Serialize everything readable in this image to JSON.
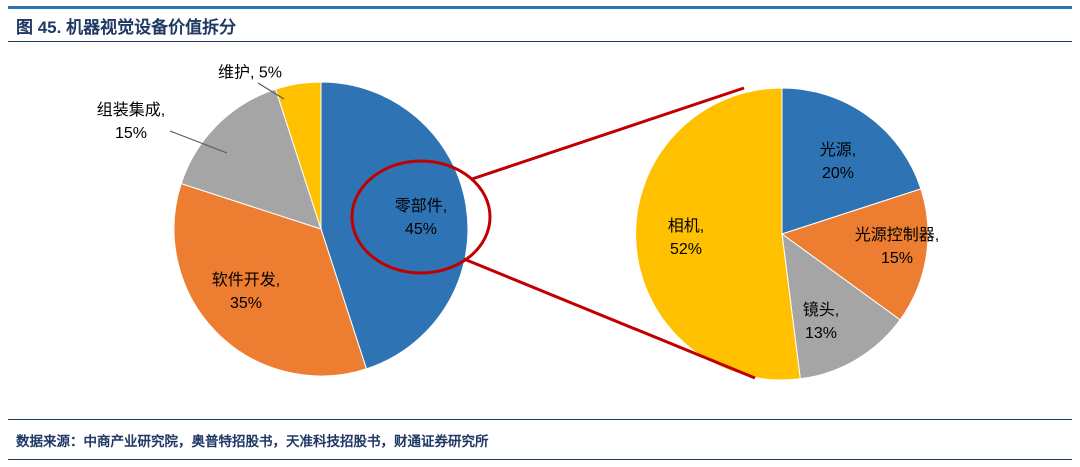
{
  "header": {
    "title": "图 45. 机器视觉设备价值拆分"
  },
  "footer": {
    "source": "数据来源：中商产业研究院，奥普特招股书，天准科技招股书，财通证券研究所"
  },
  "colors": {
    "blue": "#2E74B5",
    "orange": "#ED7D31",
    "gray": "#A5A5A5",
    "yellow": "#FFC000",
    "navy": "#1F3864",
    "red": "#C00000",
    "label_text": "#000000"
  },
  "chart_data": [
    {
      "type": "pie",
      "position": "left",
      "start_angle_deg": 0,
      "direction": "clockwise",
      "legend": "none",
      "slices": [
        {
          "key": "components",
          "category": "零部件",
          "value_pct": 45,
          "color_key": "blue",
          "label": "零部件,\n45%",
          "label_placement": "inside"
        },
        {
          "key": "software-development",
          "category": "软件开发",
          "value_pct": 35,
          "color_key": "orange",
          "label": "软件开发,\n35%",
          "label_placement": "inside"
        },
        {
          "key": "assembly-integration",
          "category": "组装集成",
          "value_pct": 15,
          "color_key": "gray",
          "label": "组装集成,\n15%",
          "label_placement": "outside"
        },
        {
          "key": "maintenance",
          "category": "维护",
          "value_pct": 5,
          "color_key": "yellow",
          "label": "维护, 5%",
          "label_placement": "outside"
        }
      ]
    },
    {
      "type": "pie",
      "position": "right",
      "start_angle_deg": 0,
      "direction": "clockwise",
      "legend": "none",
      "slices": [
        {
          "key": "light-source",
          "category": "光源",
          "value_pct": 20,
          "color_key": "blue",
          "label": "光源,\n20%",
          "label_placement": "inside"
        },
        {
          "key": "light-source-controller",
          "category": "光源控制器",
          "value_pct": 15,
          "color_key": "orange",
          "label": "光源控制器,\n15%",
          "label_placement": "inside"
        },
        {
          "key": "lens",
          "category": "镜头",
          "value_pct": 13,
          "color_key": "gray",
          "label": "镜头,\n13%",
          "label_placement": "inside"
        },
        {
          "key": "camera",
          "category": "相机",
          "value_pct": 52,
          "color_key": "yellow",
          "label": "相机,\n52%",
          "label_placement": "inside"
        }
      ]
    }
  ],
  "callout": {
    "shape": "red-ellipse-with-connector-lines",
    "highlights": "零部件, 45%",
    "expands_into": "right pie"
  }
}
